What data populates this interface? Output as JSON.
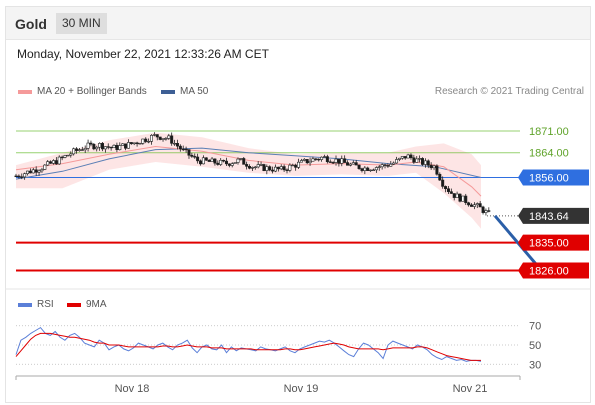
{
  "header": {
    "title": "Gold",
    "timeframe": "30 MIN"
  },
  "timestamp": "Monday, November 22, 2021 12:33:26 AM CET",
  "legend": {
    "ma20_label": "MA 20 + Bollinger Bands",
    "ma50_label": "MA 50",
    "credit": "Research © 2021 Trading Central"
  },
  "rsi_legend": {
    "rsi_label": "RSI",
    "ma_label": "9MA"
  },
  "colors": {
    "bollinger_fill": "#fde2e2",
    "ma20": "#f59a9a",
    "ma50": "#5b7fb5",
    "candle_up": "#ffffff",
    "candle_down": "#1a1a1a",
    "resistance": "#6cbf35",
    "pivot": "#2f6fe0",
    "support": "#e00000",
    "current": "#333333",
    "arrow": "#2b5fa8",
    "rsi": "#5b7fd8",
    "rsi_ma": "#e00000"
  },
  "chart_data": [
    {
      "type": "candlestick",
      "title": "Gold",
      "ylim": [
        1821,
        1881
      ],
      "x_tick_labels": [
        "Nov 18",
        "Nov 19",
        "Nov 21"
      ],
      "levels": [
        {
          "value": 1871.0,
          "label": "1871.00",
          "kind": "resistance"
        },
        {
          "value": 1864.0,
          "label": "1864.00",
          "kind": "resistance"
        },
        {
          "value": 1856.0,
          "label": "1856.00",
          "kind": "pivot"
        },
        {
          "value": 1843.64,
          "label": "1843.64",
          "kind": "current"
        },
        {
          "value": 1835.0,
          "label": "1835.00",
          "kind": "support"
        },
        {
          "value": 1826.0,
          "label": "1826.00",
          "kind": "support"
        }
      ],
      "price_path": [
        [
          0,
          1856.5
        ],
        [
          3,
          1858.0
        ],
        [
          6,
          1859.5
        ],
        [
          9,
          1861.5
        ],
        [
          12,
          1864.0
        ],
        [
          15,
          1866.0
        ],
        [
          18,
          1866.5
        ],
        [
          21,
          1865.5
        ],
        [
          24,
          1866.5
        ],
        [
          27,
          1868.0
        ],
        [
          30,
          1869.5
        ],
        [
          33,
          1868.5
        ],
        [
          36,
          1864.5
        ],
        [
          39,
          1861.5
        ],
        [
          42,
          1861.0
        ],
        [
          45,
          1860.5
        ],
        [
          48,
          1861.5
        ],
        [
          51,
          1859.5
        ],
        [
          54,
          1859.0
        ],
        [
          57,
          1858.5
        ],
        [
          60,
          1860.0
        ],
        [
          63,
          1861.5
        ],
        [
          66,
          1862.5
        ],
        [
          69,
          1861.5
        ],
        [
          72,
          1860.0
        ],
        [
          75,
          1859.0
        ],
        [
          78,
          1859.5
        ],
        [
          81,
          1860.5
        ],
        [
          84,
          1863.0
        ],
        [
          87,
          1861.0
        ],
        [
          90,
          1859.5
        ],
        [
          92,
          1853.5
        ],
        [
          94,
          1850.5
        ],
        [
          96,
          1849.0
        ],
        [
          98,
          1847.5
        ],
        [
          100,
          1846.0
        ],
        [
          102,
          1843.64
        ]
      ],
      "ma20": [
        [
          0,
          1858.5
        ],
        [
          10,
          1860.5
        ],
        [
          20,
          1863.5
        ],
        [
          30,
          1866.0
        ],
        [
          40,
          1864.5
        ],
        [
          50,
          1861.5
        ],
        [
          60,
          1860.0
        ],
        [
          70,
          1860.5
        ],
        [
          80,
          1860.0
        ],
        [
          86,
          1861.0
        ],
        [
          92,
          1859.5
        ],
        [
          98,
          1853.0
        ],
        [
          100,
          1850.0
        ]
      ],
      "bollinger_upper": [
        [
          0,
          1860.0
        ],
        [
          10,
          1864.0
        ],
        [
          20,
          1868.0
        ],
        [
          30,
          1870.5
        ],
        [
          40,
          1869.0
        ],
        [
          50,
          1865.5
        ],
        [
          60,
          1863.5
        ],
        [
          70,
          1864.0
        ],
        [
          80,
          1864.0
        ],
        [
          86,
          1866.0
        ],
        [
          92,
          1867.0
        ],
        [
          98,
          1863.5
        ],
        [
          100,
          1860.0
        ]
      ],
      "bollinger_lower": [
        [
          0,
          1852.5
        ],
        [
          10,
          1852.5
        ],
        [
          20,
          1858.5
        ],
        [
          30,
          1861.0
        ],
        [
          40,
          1859.5
        ],
        [
          50,
          1857.5
        ],
        [
          60,
          1856.5
        ],
        [
          70,
          1857.0
        ],
        [
          80,
          1856.5
        ],
        [
          86,
          1857.5
        ],
        [
          92,
          1851.0
        ],
        [
          98,
          1843.0
        ],
        [
          100,
          1839.5
        ]
      ],
      "ma50": [
        [
          0,
          1855.5
        ],
        [
          10,
          1858.0
        ],
        [
          20,
          1862.0
        ],
        [
          30,
          1865.0
        ],
        [
          40,
          1865.5
        ],
        [
          50,
          1864.0
        ],
        [
          60,
          1863.0
        ],
        [
          70,
          1862.0
        ],
        [
          80,
          1860.5
        ],
        [
          90,
          1859.5
        ],
        [
          100,
          1856.0
        ]
      ],
      "arrow": {
        "from": [
          103,
          1843.64
        ],
        "to": [
          113,
          1826.0
        ]
      }
    },
    {
      "type": "line",
      "title": "RSI",
      "ylim": [
        22,
        78
      ],
      "y_ticks": [
        70,
        50,
        30
      ],
      "series": [
        {
          "name": "RSI",
          "values": [
            40,
            55,
            58,
            62,
            65,
            68,
            62,
            60,
            64,
            58,
            55,
            60,
            62,
            58,
            52,
            50,
            48,
            55,
            52,
            45,
            48,
            50,
            46,
            44,
            47,
            52,
            50,
            48,
            46,
            50,
            52,
            48,
            45,
            50,
            52,
            55,
            47,
            42,
            48,
            50,
            46,
            45,
            50,
            42,
            48,
            44,
            47,
            46,
            45,
            44,
            48,
            46,
            45,
            44,
            46,
            48,
            44,
            42,
            46,
            48,
            50,
            52,
            54,
            53,
            55,
            52,
            48,
            44,
            40,
            38,
            46,
            52,
            50,
            46,
            42,
            36,
            50,
            54,
            52,
            50,
            48,
            46,
            50,
            48,
            45,
            40,
            37,
            35,
            38,
            36,
            34,
            35,
            33,
            34,
            34,
            33
          ]
        },
        {
          "name": "9MA",
          "values": [
            38,
            44,
            50,
            56,
            60,
            62,
            62,
            62,
            61,
            60,
            59,
            58,
            58,
            57,
            56,
            55,
            53,
            52,
            52,
            50,
            50,
            50,
            49,
            48,
            48,
            48,
            48,
            48,
            48,
            48,
            49,
            49,
            48,
            48,
            49,
            50,
            49,
            48,
            48,
            48,
            47,
            47,
            47,
            46,
            46,
            46,
            46,
            46,
            46,
            45,
            45,
            45,
            45,
            45,
            45,
            46,
            46,
            45,
            45,
            46,
            47,
            48,
            49,
            50,
            51,
            52,
            51,
            50,
            48,
            47,
            46,
            46,
            46,
            46,
            46,
            45,
            46,
            47,
            47,
            47,
            47,
            47,
            48,
            48,
            47,
            45,
            43,
            41,
            39,
            38,
            37,
            36,
            35,
            34,
            34,
            34
          ]
        }
      ]
    }
  ]
}
